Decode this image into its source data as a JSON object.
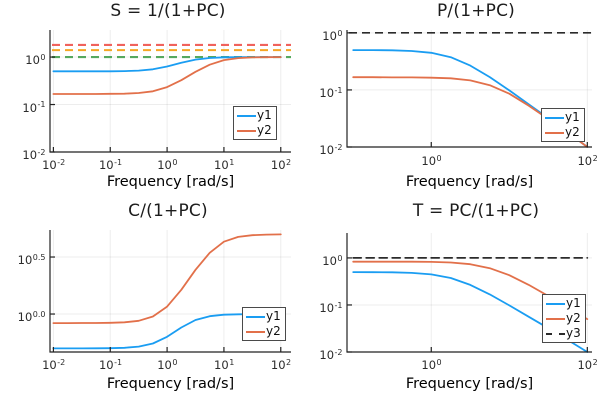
{
  "figure": {
    "background": "#ffffff"
  },
  "palette": {
    "blue": "#1a9df2",
    "orange": "#e2704a",
    "red_dashed": "#f0625c",
    "orange_dashed": "#f5a623",
    "green_dashed": "#55a85e",
    "black_dashed": "#2b2b2b",
    "axis": "#222222",
    "grid": "rgba(0,0,0,0.07)",
    "text": "#1c1c1c"
  },
  "chart_data": [
    {
      "type": "line",
      "title": "S = 1/(1+PC)",
      "xlabel": "Frequency [rad/s]",
      "xscale": "log10",
      "yscale": "log10",
      "xlim_log": [
        -2.06,
        2.18
      ],
      "ylim_log": [
        -2.0,
        0.57
      ],
      "xticks": [
        {
          "v": -2,
          "exp": "-2"
        },
        {
          "v": -1,
          "exp": "-1"
        },
        {
          "v": 0,
          "exp": "0"
        },
        {
          "v": 1,
          "exp": "1"
        },
        {
          "v": 2,
          "exp": "2"
        }
      ],
      "yticks": [
        {
          "v": 0,
          "exp": "0"
        },
        {
          "v": -1,
          "exp": "-1"
        },
        {
          "v": -2,
          "exp": "-2"
        }
      ],
      "x": [
        0.01,
        0.0178,
        0.0316,
        0.0562,
        0.1,
        0.178,
        0.316,
        0.562,
        1,
        1.78,
        3.16,
        5.62,
        10,
        17.8,
        31.6,
        56.2,
        100
      ],
      "series": [
        {
          "name": "y1",
          "color": "blue",
          "dash": false,
          "y": [
            0.5,
            0.5,
            0.5,
            0.501,
            0.502,
            0.506,
            0.518,
            0.552,
            0.632,
            0.762,
            0.886,
            0.957,
            0.986,
            0.995,
            0.999,
            1.0,
            1.0
          ]
        },
        {
          "name": "y2",
          "color": "orange",
          "dash": false,
          "y": [
            0.167,
            0.167,
            0.167,
            0.167,
            0.168,
            0.169,
            0.175,
            0.19,
            0.233,
            0.326,
            0.489,
            0.689,
            0.862,
            0.949,
            0.983,
            0.995,
            0.998
          ]
        }
      ],
      "hlines": [
        {
          "y": 1.8,
          "color": "red_dashed"
        },
        {
          "y": 1.4,
          "color": "orange_dashed"
        },
        {
          "y": 1.0,
          "color": "green_dashed"
        }
      ],
      "legend": [
        "y1",
        "y2"
      ]
    },
    {
      "type": "line",
      "title": "P/(1+PC)",
      "xlabel": "Frequency [rad/s]",
      "xscale": "log10",
      "yscale": "log10",
      "xlim_log": [
        -1.08,
        2.06
      ],
      "ylim_log": [
        -2.0,
        0.05
      ],
      "xticks": [
        {
          "v": 0,
          "exp": "0"
        },
        {
          "v": 2,
          "exp": "2"
        }
      ],
      "yticks": [
        {
          "v": 0,
          "exp": "0"
        },
        {
          "v": -1,
          "exp": "-1"
        },
        {
          "v": -2,
          "exp": "-2"
        }
      ],
      "x": [
        0.1,
        0.178,
        0.316,
        0.562,
        1,
        1.78,
        3.16,
        5.62,
        10,
        17.8,
        31.6,
        56.2,
        100
      ],
      "series": [
        {
          "name": "y1",
          "color": "blue",
          "dash": false,
          "y": [
            0.499,
            0.498,
            0.494,
            0.481,
            0.447,
            0.374,
            0.267,
            0.168,
            0.098,
            0.056,
            0.032,
            0.018,
            0.01
          ]
        },
        {
          "name": "y2",
          "color": "orange",
          "dash": false,
          "y": [
            0.167,
            0.167,
            0.166,
            0.166,
            0.164,
            0.16,
            0.147,
            0.121,
            0.086,
            0.053,
            0.031,
            0.018,
            0.01
          ]
        }
      ],
      "hlines": [
        {
          "y": 1.0,
          "color": "black_dashed"
        }
      ],
      "legend": [
        "y1",
        "y2"
      ]
    },
    {
      "type": "line",
      "title": "C/(1+PC)",
      "xlabel": "Frequency [rad/s]",
      "xscale": "log10",
      "yscale": "log10",
      "xlim_log": [
        -2.06,
        2.18
      ],
      "ylim_log": [
        -0.333,
        0.737
      ],
      "xticks": [
        {
          "v": -2,
          "exp": "-2"
        },
        {
          "v": -1,
          "exp": "-1"
        },
        {
          "v": 0,
          "exp": "0"
        },
        {
          "v": 1,
          "exp": "1"
        },
        {
          "v": 2,
          "exp": "2"
        }
      ],
      "yticks": [
        {
          "v": 0.5,
          "exp": "0.5"
        },
        {
          "v": 0.0,
          "exp": "0.0"
        }
      ],
      "x": [
        0.01,
        0.0178,
        0.0316,
        0.0562,
        0.1,
        0.178,
        0.316,
        0.562,
        1,
        1.78,
        3.16,
        5.62,
        10,
        17.8,
        31.6,
        56.2,
        100
      ],
      "series": [
        {
          "name": "y1",
          "color": "blue",
          "dash": false,
          "y": [
            0.5,
            0.5,
            0.5,
            0.501,
            0.502,
            0.506,
            0.518,
            0.552,
            0.632,
            0.762,
            0.886,
            0.957,
            0.986,
            0.995,
            0.999,
            1.0,
            1.0
          ]
        },
        {
          "name": "y2",
          "color": "orange",
          "dash": false,
          "y": [
            0.833,
            0.833,
            0.834,
            0.834,
            0.837,
            0.846,
            0.873,
            0.951,
            1.163,
            1.63,
            2.445,
            3.447,
            4.309,
            4.746,
            4.914,
            4.973,
            4.992
          ]
        }
      ],
      "hlines": [],
      "legend": [
        "y1",
        "y2"
      ]
    },
    {
      "type": "line",
      "title": "T = PC/(1+PC)",
      "xlabel": "Frequency [rad/s]",
      "xscale": "log10",
      "yscale": "log10",
      "xlim_log": [
        -1.08,
        2.06
      ],
      "ylim_log": [
        -2.0,
        0.53
      ],
      "xticks": [
        {
          "v": 0,
          "exp": "0"
        },
        {
          "v": 2,
          "exp": "2"
        }
      ],
      "yticks": [
        {
          "v": 0,
          "exp": "0"
        },
        {
          "v": -1,
          "exp": "-1"
        },
        {
          "v": -2,
          "exp": "-2"
        }
      ],
      "x": [
        0.1,
        0.178,
        0.316,
        0.562,
        1,
        1.78,
        3.16,
        5.62,
        10,
        17.8,
        31.6,
        56.2,
        100
      ],
      "series": [
        {
          "name": "y1",
          "color": "blue",
          "dash": false,
          "y": [
            0.499,
            0.498,
            0.494,
            0.481,
            0.447,
            0.374,
            0.267,
            0.168,
            0.098,
            0.056,
            0.032,
            0.018,
            0.01
          ]
        },
        {
          "name": "y2",
          "color": "orange",
          "dash": false,
          "y": [
            0.833,
            0.833,
            0.832,
            0.83,
            0.822,
            0.799,
            0.737,
            0.604,
            0.429,
            0.267,
            0.155,
            0.088,
            0.05
          ]
        },
        {
          "name": "y3",
          "color": "black_dashed",
          "dash": true,
          "y": [
            1.0,
            1.0,
            1.0,
            1.0,
            1.0,
            1.0,
            1.0,
            1.0,
            1.0,
            1.0,
            1.0,
            1.0,
            1.0
          ]
        }
      ],
      "hlines": [],
      "legend": [
        "y1",
        "y2",
        "y3"
      ]
    }
  ]
}
